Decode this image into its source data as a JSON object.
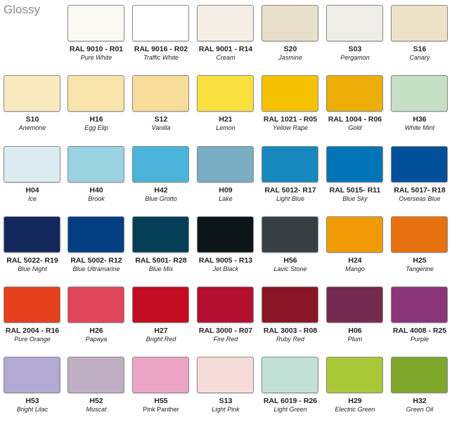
{
  "title": "Glossy",
  "rows": [
    [
      {
        "code": "RAL 9010 - R01",
        "name": "Pure White",
        "color": "#fbfaf5"
      },
      {
        "code": "RAL 9016 - R02",
        "name": "Traffic White",
        "color": "#ffffff"
      },
      {
        "code": "RAL 9001 - R14",
        "name": "Cream",
        "color": "#f4eee5"
      },
      {
        "code": "S20",
        "name": "Jasmine",
        "color": "#e8dfcb"
      },
      {
        "code": "S03",
        "name": "Pergamon",
        "color": "#eeede7"
      },
      {
        "code": "S16",
        "name": "Canary",
        "color": "#ede1c8"
      }
    ],
    [
      {
        "code": "S10",
        "name": "Anemone",
        "color": "#f8e9bf"
      },
      {
        "code": "H16",
        "name": "Egg Elip",
        "color": "#f9e5a9"
      },
      {
        "code": "S12",
        "name": "Vanilla",
        "color": "#f8dc9a"
      },
      {
        "code": "H21",
        "name": "Lemon",
        "color": "#f9e03f"
      },
      {
        "code": "RAL 1021 - R05",
        "name": "Yellow Rape",
        "color": "#f6c200"
      },
      {
        "code": "RAL 1004 - R06",
        "name": "Gold",
        "color": "#edae0a"
      },
      {
        "code": "H36",
        "name": "White Mint",
        "color": "#c4dfc4"
      }
    ],
    [
      {
        "code": "H04",
        "name": "Ice",
        "color": "#dceaf1"
      },
      {
        "code": "H40",
        "name": "Brook",
        "color": "#9ad2e2"
      },
      {
        "code": "H42",
        "name": "Blue Grotto",
        "color": "#4bb4da"
      },
      {
        "code": "H09",
        "name": "Lake",
        "color": "#79adc3"
      },
      {
        "code": "RAL 5012- R17",
        "name": "Light Blue",
        "color": "#1788bd"
      },
      {
        "code": "RAL 5015- R11",
        "name": "Blue Sky",
        "color": "#0074b7"
      },
      {
        "code": "RAL 5017- R18",
        "name": "Overseas Blue",
        "color": "#02509a"
      }
    ],
    [
      {
        "code": "RAL 5022- R19",
        "name": "Blue Night",
        "color": "#13285a"
      },
      {
        "code": "RAL 5002- R12",
        "name": "Blue Ultramarine",
        "color": "#033f82"
      },
      {
        "code": "RAL 5001- R28",
        "name": "Blue Mix",
        "color": "#043e57"
      },
      {
        "code": "RAL 9005 - R13",
        "name": "Jet Black",
        "color": "#0d1619"
      },
      {
        "code": "H56",
        "name": "Lavic Stone",
        "color": "#373f44"
      },
      {
        "code": "H24",
        "name": "Mango",
        "color": "#f09a05"
      },
      {
        "code": "H25",
        "name": "Tangerine",
        "color": "#e8710f"
      }
    ],
    [
      {
        "code": "RAL 2004 - R16",
        "name": "Pure Orange",
        "color": "#e4401c"
      },
      {
        "code": "H26",
        "name": "Papaya",
        "color": "#df4658"
      },
      {
        "code": "H27",
        "name": "Bright Red",
        "color": "#c30b22"
      },
      {
        "code": "RAL 3000 - R07",
        "name": "Fire Red",
        "color": "#b40f30"
      },
      {
        "code": "RAL 3003 - R08",
        "name": "Ruby Red",
        "color": "#8a1625"
      },
      {
        "code": "H06",
        "name": "Plum",
        "color": "#742a4e"
      },
      {
        "code": "RAL 4008 - R25",
        "name": "Purple",
        "color": "#8a3578"
      }
    ],
    [
      {
        "code": "H53",
        "name": "Bright Lilac",
        "color": "#b2aad2"
      },
      {
        "code": "H52",
        "name": "Muscat",
        "color": "#bfaec4"
      },
      {
        "code": "H55",
        "name": "Pink Panther",
        "color": "#eda5c6"
      },
      {
        "code": "S13",
        "name": "Light Pink",
        "color": "#f6dcd9"
      },
      {
        "code": "RAL 6019 - R26",
        "name": "Light Green",
        "color": "#c3e0d7"
      },
      {
        "code": "H29",
        "name": "Electric Green",
        "color": "#aac737"
      },
      {
        "code": "H32",
        "name": "Green Oil",
        "color": "#80a82c"
      }
    ]
  ]
}
